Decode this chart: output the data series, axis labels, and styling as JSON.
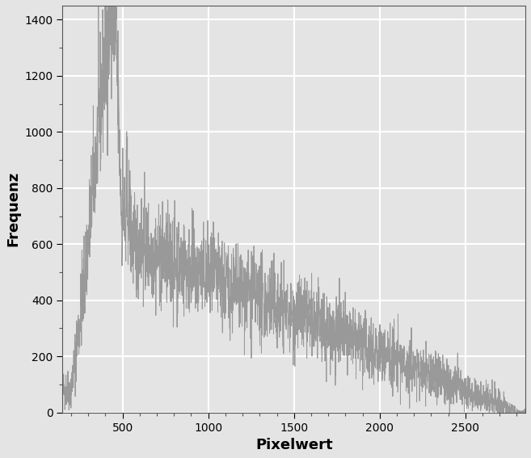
{
  "xlabel": "Pixelwert",
  "ylabel": "Frequenz",
  "xlim": [
    150,
    2850
  ],
  "ylim": [
    0,
    1450
  ],
  "xticks": [
    500,
    1000,
    1500,
    2000,
    2500
  ],
  "yticks": [
    0,
    200,
    400,
    600,
    800,
    1000,
    1200,
    1400
  ],
  "line_color": "#999999",
  "bg_color": "#e4e4e4",
  "grid_color": "#ffffff",
  "xlabel_fontsize": 13,
  "ylabel_fontsize": 13,
  "xlabel_fontweight": "bold",
  "ylabel_fontweight": "bold",
  "seed": 42,
  "figsize": [
    6.57,
    5.67
  ],
  "dpi": 100
}
